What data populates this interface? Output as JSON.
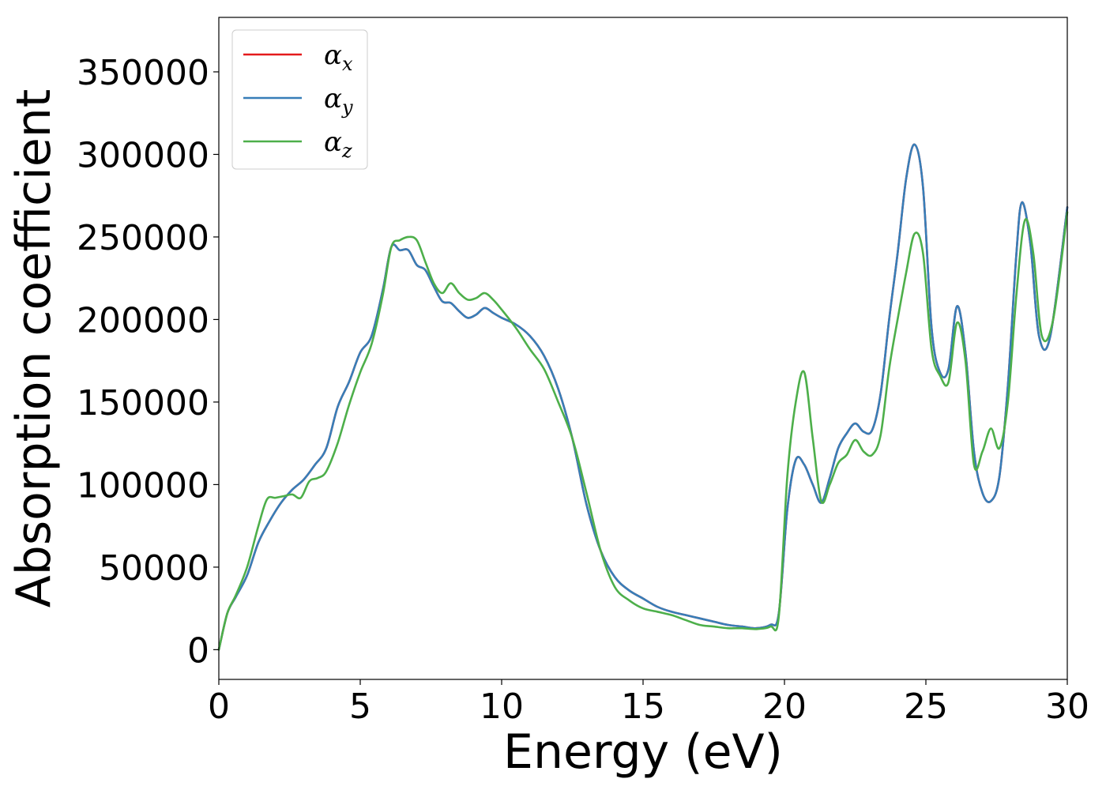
{
  "chart_data": {
    "type": "line",
    "xlabel": "Energy (eV)",
    "ylabel": "Absorption coefficient",
    "xlim": [
      0,
      30
    ],
    "ylim": [
      -18000,
      383000
    ],
    "xticks": [
      0,
      5,
      10,
      15,
      20,
      25,
      30
    ],
    "yticks": [
      0,
      50000,
      100000,
      150000,
      200000,
      250000,
      300000,
      350000
    ],
    "grid": false,
    "legend_position": "top-left",
    "series": [
      {
        "name": "α",
        "subscript": "x",
        "color": "#e41a1c",
        "x": [
          0,
          0.3,
          0.6,
          1.0,
          1.4,
          1.8,
          2.2,
          2.6,
          3.0,
          3.4,
          3.8,
          4.2,
          4.6,
          5.0,
          5.4,
          5.8,
          6.1,
          6.4,
          6.7,
          7.0,
          7.3,
          7.6,
          7.9,
          8.2,
          8.5,
          8.8,
          9.1,
          9.4,
          9.7,
          10.0,
          10.5,
          11.0,
          11.5,
          12.0,
          12.5,
          13.0,
          13.5,
          14.0,
          14.5,
          15.0,
          15.5,
          16.0,
          16.5,
          17.0,
          17.5,
          18.0,
          18.5,
          19.0,
          19.5,
          19.8,
          20.1,
          20.4,
          20.7,
          21.0,
          21.3,
          21.6,
          21.9,
          22.2,
          22.5,
          22.8,
          23.1,
          23.4,
          23.7,
          24.0,
          24.3,
          24.6,
          24.9,
          25.2,
          25.5,
          25.8,
          26.1,
          26.4,
          26.7,
          27.0,
          27.3,
          27.6,
          27.9,
          28.2,
          28.4,
          28.7,
          29.0,
          29.4,
          30.0
        ],
        "y": [
          0,
          22000,
          32000,
          45000,
          65000,
          78000,
          89000,
          97000,
          103000,
          112000,
          122000,
          147000,
          162000,
          180000,
          190000,
          218000,
          244000,
          242000,
          242000,
          233000,
          230000,
          220000,
          211000,
          210000,
          205000,
          201000,
          203000,
          207000,
          204000,
          201000,
          197000,
          190000,
          178000,
          158000,
          128000,
          88000,
          60000,
          44000,
          36000,
          31000,
          26000,
          23000,
          21000,
          19000,
          17000,
          15000,
          14000,
          13000,
          15000,
          22000,
          85000,
          115000,
          112000,
          100000,
          89000,
          104000,
          122000,
          131000,
          137000,
          132000,
          133000,
          155000,
          200000,
          240000,
          285000,
          306000,
          280000,
          195000,
          168000,
          170000,
          208000,
          180000,
          120000,
          95000,
          90000,
          105000,
          160000,
          240000,
          271000,
          245000,
          190000,
          190000,
          268000
        ]
      },
      {
        "name": "α",
        "subscript": "y",
        "color": "#377eb8",
        "x": [
          0,
          0.3,
          0.6,
          1.0,
          1.4,
          1.8,
          2.2,
          2.6,
          3.0,
          3.4,
          3.8,
          4.2,
          4.6,
          5.0,
          5.4,
          5.8,
          6.1,
          6.4,
          6.7,
          7.0,
          7.3,
          7.6,
          7.9,
          8.2,
          8.5,
          8.8,
          9.1,
          9.4,
          9.7,
          10.0,
          10.5,
          11.0,
          11.5,
          12.0,
          12.5,
          13.0,
          13.5,
          14.0,
          14.5,
          15.0,
          15.5,
          16.0,
          16.5,
          17.0,
          17.5,
          18.0,
          18.5,
          19.0,
          19.5,
          19.8,
          20.1,
          20.4,
          20.7,
          21.0,
          21.3,
          21.6,
          21.9,
          22.2,
          22.5,
          22.8,
          23.1,
          23.4,
          23.7,
          24.0,
          24.3,
          24.6,
          24.9,
          25.2,
          25.5,
          25.8,
          26.1,
          26.4,
          26.7,
          27.0,
          27.3,
          27.6,
          27.9,
          28.2,
          28.4,
          28.7,
          29.0,
          29.4,
          30.0
        ],
        "y": [
          0,
          22000,
          32000,
          45000,
          65000,
          78000,
          89000,
          97000,
          103000,
          112000,
          122000,
          147000,
          162000,
          180000,
          190000,
          218000,
          244000,
          242000,
          242000,
          233000,
          230000,
          220000,
          211000,
          210000,
          205000,
          201000,
          203000,
          207000,
          204000,
          201000,
          197000,
          190000,
          178000,
          158000,
          128000,
          88000,
          60000,
          44000,
          36000,
          31000,
          26000,
          23000,
          21000,
          19000,
          17000,
          15000,
          14000,
          13000,
          15000,
          22000,
          85000,
          115000,
          112000,
          100000,
          89000,
          104000,
          122000,
          131000,
          137000,
          132000,
          133000,
          155000,
          200000,
          240000,
          285000,
          306000,
          280000,
          195000,
          168000,
          170000,
          208000,
          180000,
          120000,
          95000,
          90000,
          105000,
          160000,
          240000,
          271000,
          245000,
          190000,
          190000,
          268000
        ]
      },
      {
        "name": "α",
        "subscript": "z",
        "color": "#4daf4a",
        "x": [
          0,
          0.3,
          0.6,
          1.0,
          1.4,
          1.7,
          2.0,
          2.3,
          2.6,
          2.9,
          3.2,
          3.5,
          3.8,
          4.2,
          4.6,
          5.0,
          5.4,
          5.8,
          6.1,
          6.4,
          6.7,
          7.0,
          7.3,
          7.6,
          7.9,
          8.2,
          8.5,
          8.8,
          9.1,
          9.4,
          9.7,
          10.0,
          10.5,
          11.0,
          11.5,
          12.0,
          12.5,
          13.0,
          13.5,
          14.0,
          14.5,
          15.0,
          15.5,
          16.0,
          16.5,
          17.0,
          17.5,
          18.0,
          18.5,
          19.0,
          19.5,
          19.8,
          20.1,
          20.4,
          20.7,
          21.0,
          21.3,
          21.6,
          21.9,
          22.2,
          22.5,
          22.8,
          23.1,
          23.4,
          23.7,
          24.0,
          24.3,
          24.6,
          24.9,
          25.2,
          25.5,
          25.8,
          26.1,
          26.4,
          26.7,
          27.0,
          27.3,
          27.6,
          27.9,
          28.2,
          28.5,
          28.8,
          29.1,
          29.5,
          30.0
        ],
        "y": [
          0,
          22000,
          33000,
          50000,
          75000,
          91000,
          92000,
          93000,
          94000,
          92000,
          102000,
          104000,
          108000,
          125000,
          148000,
          168000,
          185000,
          215000,
          244000,
          248000,
          250000,
          248000,
          235000,
          222000,
          216000,
          222000,
          216000,
          212000,
          213000,
          216000,
          212000,
          206000,
          195000,
          182000,
          170000,
          150000,
          128000,
          95000,
          60000,
          38000,
          30000,
          25000,
          23000,
          21000,
          18000,
          15000,
          14000,
          13000,
          13000,
          12500,
          14000,
          20000,
          105000,
          150000,
          168000,
          128000,
          90000,
          100000,
          113000,
          118000,
          127000,
          120000,
          118000,
          130000,
          170000,
          200000,
          228000,
          252000,
          240000,
          182000,
          166000,
          162000,
          198000,
          175000,
          112000,
          120000,
          134000,
          122000,
          150000,
          215000,
          260000,
          240000,
          190000,
          200000,
          265000
        ]
      }
    ]
  }
}
